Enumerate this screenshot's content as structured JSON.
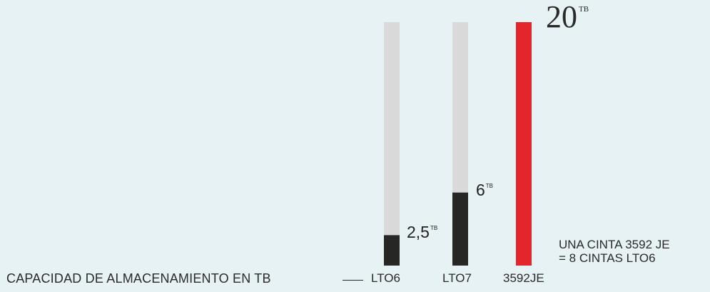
{
  "chart_data": {
    "type": "bar",
    "caption": "CAPACIDAD DE ALMACENAMIENTO EN TB",
    "categories": [
      "LTO6",
      "LTO7",
      "3592JE"
    ],
    "values": [
      2.5,
      6,
      20
    ],
    "value_labels": [
      "2,5",
      "6",
      "20"
    ],
    "unit_label": "TB",
    "ylim": [
      0,
      20
    ],
    "grid": false,
    "colors": {
      "track": "#d9d9d9",
      "fill": "#262624",
      "highlight": "#e2262b",
      "background": "#e6f2f4"
    },
    "note": [
      "UNA CINTA 3592 JE",
      "= 8 CINTAS LTO6"
    ]
  }
}
